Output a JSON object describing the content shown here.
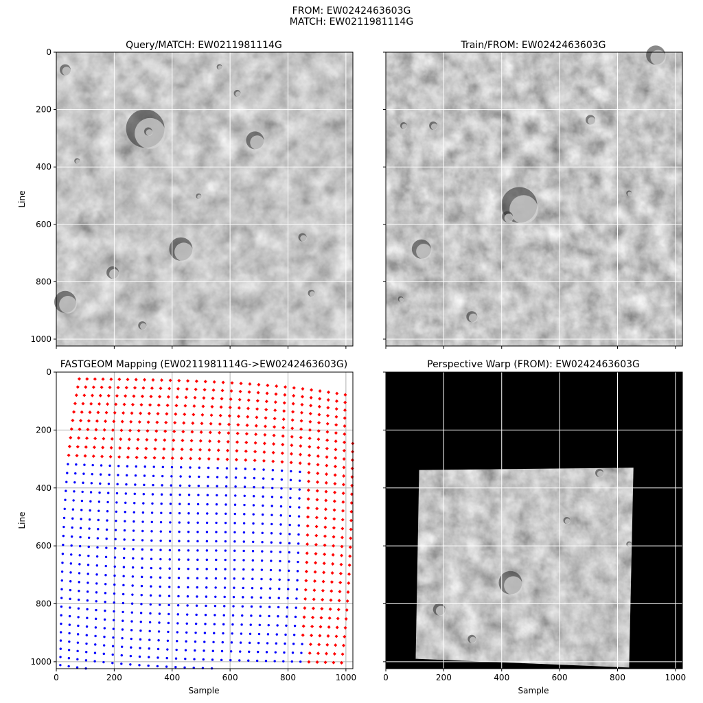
{
  "suptitle": {
    "line1": "FROM:   EW0242463603G",
    "line2": "MATCH: EW0211981114G"
  },
  "colors": {
    "outside_points": "#ff0000",
    "inside_points": "#0000ff",
    "grid": "#ffffff",
    "warp_background": "#000000"
  },
  "panels": {
    "query": {
      "title": "Query/MATCH: EW0211981114G",
      "ylabel": "Line",
      "xlabel": ""
    },
    "train": {
      "title": "Train/FROM: EW0242463603G",
      "ylabel": "",
      "xlabel": ""
    },
    "mapping": {
      "title": "FASTGEOM Mapping (EW0211981114G->EW0242463603G)",
      "ylabel": "Line",
      "xlabel": "Sample"
    },
    "warp": {
      "title": "Perspective Warp (FROM): EW0242463603G",
      "ylabel": "",
      "xlabel": "Sample"
    }
  },
  "chart_data": [
    {
      "type": "image",
      "panel": "query",
      "title": "Query/MATCH: EW0211981114G",
      "ylabel": "Line",
      "xlim": [
        0,
        1024
      ],
      "ylim": [
        1024,
        0
      ],
      "xticks": [
        0,
        200,
        400,
        600,
        800,
        1000
      ],
      "yticks": [
        0,
        200,
        400,
        600,
        800,
        1000
      ],
      "grid": true
    },
    {
      "type": "image",
      "panel": "train",
      "title": "Train/FROM: EW0242463603G",
      "xlim": [
        0,
        1024
      ],
      "ylim": [
        1024,
        0
      ],
      "xticks": [
        0,
        200,
        400,
        600,
        800,
        1000
      ],
      "yticks": [
        0,
        200,
        400,
        600,
        800,
        1000
      ],
      "grid": true
    },
    {
      "type": "scatter",
      "panel": "mapping",
      "title": "FASTGEOM Mapping (EW0211981114G->EW0242463603G)",
      "xlabel": "Sample",
      "ylabel": "Line",
      "xlim": [
        0,
        1024
      ],
      "ylim": [
        1024,
        0
      ],
      "xticks": [
        0,
        200,
        400,
        600,
        800,
        1000
      ],
      "yticks": [
        0,
        200,
        400,
        600,
        800,
        1000
      ],
      "grid": true,
      "grid_spacing": 32,
      "inside_region": [
        [
          0,
          305
        ],
        [
          1024,
          330
        ],
        [
          1024,
          1024
        ],
        [
          0,
          1024
        ]
      ],
      "inside_x_range": [
        0,
        850
      ],
      "series_colors": [
        "red",
        "blue"
      ]
    },
    {
      "type": "image",
      "panel": "warp",
      "title": "Perspective Warp (FROM): EW0242463603G",
      "xlabel": "Sample",
      "xlim": [
        0,
        1024
      ],
      "ylim": [
        1024,
        0
      ],
      "xticks": [
        0,
        200,
        400,
        600,
        800,
        1000
      ],
      "yticks": [
        0,
        200,
        400,
        600,
        800,
        1000
      ],
      "grid": true,
      "warp_quad": [
        [
          115,
          338
        ],
        [
          855,
          330
        ],
        [
          840,
          1020
        ],
        [
          103,
          990
        ]
      ]
    }
  ]
}
